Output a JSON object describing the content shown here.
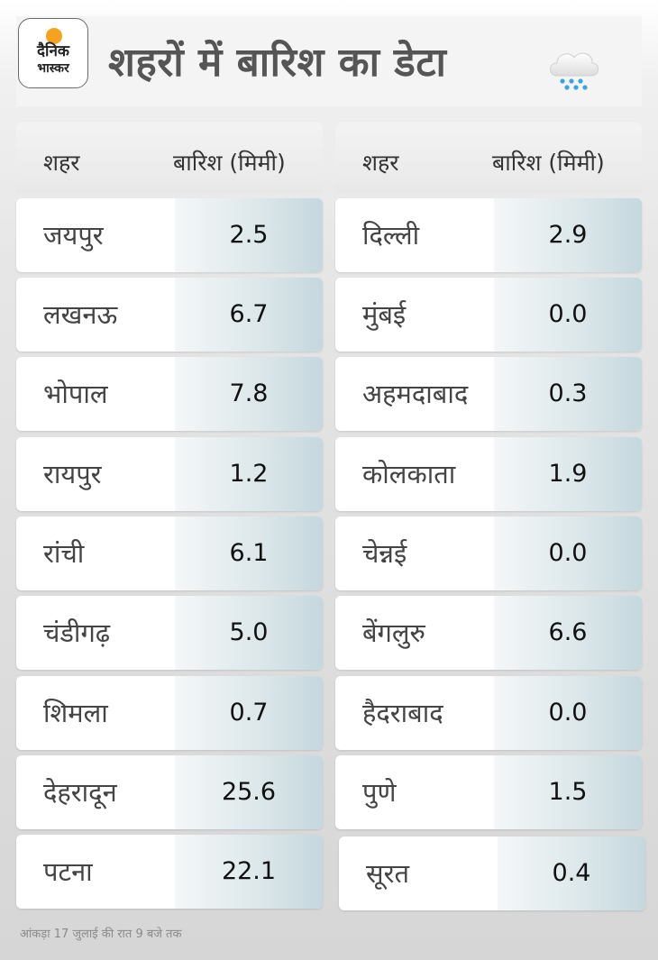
{
  "header": {
    "logo_line1": "दैनिक",
    "logo_line2": "भास्कर",
    "title": "शहरों में बारिश का डेटा",
    "weather_icon": "rain-cloud-icon",
    "accent_color": "#f5a21e"
  },
  "table": {
    "columns": [
      "शहर",
      "बारिश (मिमी)"
    ],
    "left_rows": [
      {
        "city": "जयपुर",
        "rain": "2.5"
      },
      {
        "city": "लखनऊ",
        "rain": "6.7"
      },
      {
        "city": "भोपाल",
        "rain": "7.8"
      },
      {
        "city": "रायपुर",
        "rain": "1.2"
      },
      {
        "city": "रांची",
        "rain": "6.1"
      },
      {
        "city": "चंडीगढ़",
        "rain": "5.0"
      },
      {
        "city": "शिमला",
        "rain": "0.7"
      },
      {
        "city": "देहरादून",
        "rain": "25.6"
      },
      {
        "city": "पटना",
        "rain": "22.1"
      }
    ],
    "right_rows": [
      {
        "city": "दिल्ली",
        "rain": "2.9"
      },
      {
        "city": "मुंबई",
        "rain": "0.0"
      },
      {
        "city": "अहमदाबाद",
        "rain": "0.3"
      },
      {
        "city": "कोलकाता",
        "rain": "1.9"
      },
      {
        "city": "चेन्नई",
        "rain": "0.0"
      },
      {
        "city": "बेंगलुरु",
        "rain": "6.6"
      },
      {
        "city": "हैदराबाद",
        "rain": "0.0"
      },
      {
        "city": "पुणे",
        "rain": "1.5"
      },
      {
        "city": "सूरत",
        "rain": "0.4"
      }
    ]
  },
  "footnote": "आंकड़ा 17 जुलाई की रात 9 बजे तक"
}
